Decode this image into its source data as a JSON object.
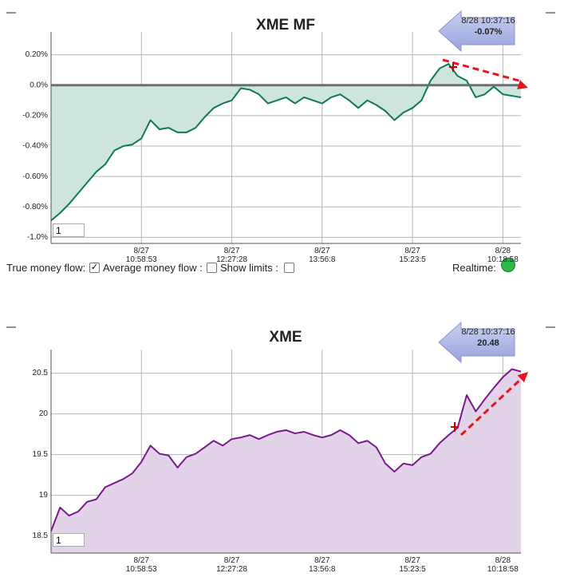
{
  "chart_data": [
    {
      "type": "line",
      "title": "XME MF",
      "color": "#0e7a55",
      "fill": "#cde4df",
      "categories": [
        null,
        null,
        null,
        null,
        null,
        null,
        null,
        null,
        null,
        null,
        "8/27\n10:58:53",
        null,
        null,
        null,
        null,
        null,
        null,
        null,
        null,
        null,
        "8/27\n12:27:28",
        null,
        null,
        null,
        null,
        null,
        null,
        null,
        null,
        null,
        "8/27\n13:56:8",
        null,
        null,
        null,
        null,
        null,
        null,
        null,
        null,
        null,
        "8/27\n15:23:5",
        null,
        null,
        null,
        null,
        null,
        null,
        null,
        null,
        null,
        "8/28\n10:18:58",
        null,
        null
      ],
      "values": [
        -0.89,
        -0.84,
        -0.78,
        -0.71,
        -0.64,
        -0.57,
        -0.52,
        -0.43,
        -0.4,
        -0.39,
        -0.35,
        -0.23,
        -0.29,
        -0.28,
        -0.31,
        -0.31,
        -0.28,
        -0.21,
        -0.15,
        -0.12,
        -0.1,
        -0.02,
        -0.03,
        -0.06,
        -0.12,
        -0.1,
        -0.08,
        -0.12,
        -0.08,
        -0.1,
        -0.12,
        -0.08,
        -0.06,
        -0.1,
        -0.15,
        -0.1,
        -0.13,
        -0.17,
        -0.23,
        -0.18,
        -0.15,
        -0.1,
        0.03,
        0.11,
        0.14,
        0.06,
        0.03,
        -0.08,
        -0.06,
        -0.01,
        -0.06,
        -0.07,
        -0.08
      ],
      "ylim": [
        -1.04,
        0.35
      ],
      "yticks": [
        {
          "value": 0.2,
          "label": "0.20%"
        },
        {
          "value": 0,
          "label": "0.0%"
        },
        {
          "value": -0.2,
          "label": "-0.20%"
        },
        {
          "value": -0.4,
          "label": "-0.40%"
        },
        {
          "value": -0.6,
          "label": "-0.60%"
        },
        {
          "value": -0.8,
          "label": "-0.80%"
        },
        {
          "value": -1.0,
          "label": "-1.0%"
        }
      ],
      "grid": true,
      "annotation": {
        "time": "8/28 10:37:16",
        "value": "-0.07%"
      },
      "input": "1"
    },
    {
      "type": "line",
      "title": "XME",
      "color": "#7a1a8a",
      "fill": "#e2d3e8",
      "categories": [
        null,
        null,
        null,
        null,
        null,
        null,
        null,
        null,
        null,
        null,
        "8/27\n10:58:53",
        null,
        null,
        null,
        null,
        null,
        null,
        null,
        null,
        null,
        "8/27\n12:27:28",
        null,
        null,
        null,
        null,
        null,
        null,
        null,
        null,
        null,
        "8/27\n13:56:8",
        null,
        null,
        null,
        null,
        null,
        null,
        null,
        null,
        null,
        "8/27\n15:23:5",
        null,
        null,
        null,
        null,
        null,
        null,
        null,
        null,
        null,
        "8/28\n10:18:58",
        null,
        null
      ],
      "values": [
        18.56,
        18.85,
        18.75,
        18.8,
        18.92,
        18.95,
        19.1,
        19.15,
        19.2,
        19.27,
        19.41,
        19.61,
        19.51,
        19.49,
        19.34,
        19.47,
        19.51,
        19.59,
        19.67,
        19.61,
        19.69,
        19.71,
        19.74,
        19.69,
        19.74,
        19.78,
        19.8,
        19.76,
        19.78,
        19.74,
        19.71,
        19.74,
        19.8,
        19.74,
        19.64,
        19.67,
        19.59,
        19.39,
        19.29,
        19.39,
        19.37,
        19.47,
        19.51,
        19.64,
        19.74,
        19.83,
        20.23,
        20.03,
        20.18,
        20.32,
        20.45,
        20.55,
        20.52
      ],
      "ylim": [
        18.29,
        20.79
      ],
      "yticks": [
        20.5,
        20,
        19.5,
        19,
        18.5
      ],
      "grid": true,
      "annotation": {
        "time": "8/28 10:37:16",
        "value": "20.48"
      },
      "input": "1"
    }
  ],
  "controls": {
    "true_money_flow": "True money flow:",
    "average_money_flow": "Average money flow :",
    "show_limits": "Show limits :",
    "realtime": "Realtime:"
  }
}
